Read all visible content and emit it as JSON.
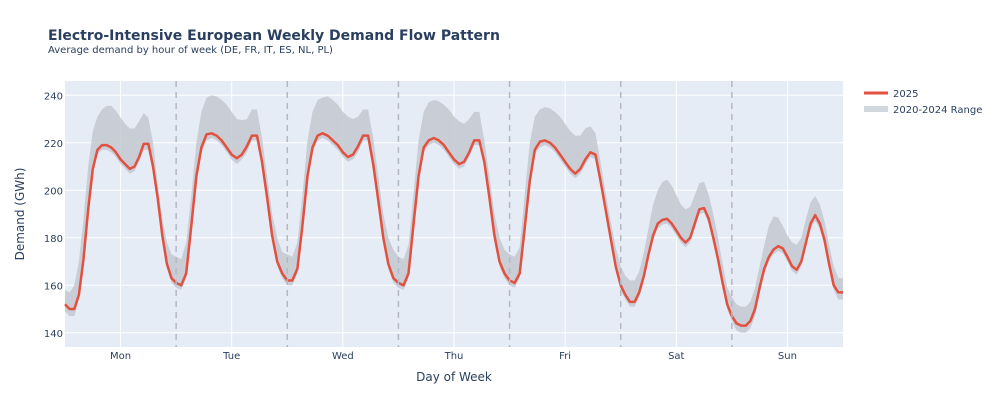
{
  "chart_data": {
    "type": "line",
    "title": "Electro-Intensive European Weekly Demand Flow Pattern",
    "subtitle": "Average demand by hour of week (DE, FR, IT, ES, NL, PL)",
    "xlabel": "Day of Week",
    "ylabel": "Demand (GWh)",
    "ylim": [
      134,
      246
    ],
    "yticks": [
      140,
      160,
      180,
      200,
      220,
      240
    ],
    "grid": true,
    "day_labels": [
      "Mon",
      "Tue",
      "Wed",
      "Thu",
      "Fri",
      "Sat",
      "Sun"
    ],
    "legend_position": "top-right",
    "colors": {
      "line_2025": "#e2513f",
      "range_fill": "#c3c8d0",
      "legend_range": "#d3d7de",
      "plot_bg": "#e5ecf6",
      "divider": "#b4b8c2",
      "text": "#2a3f5f"
    },
    "series": [
      {
        "name": "2025",
        "days": [
          [
            152,
            150,
            150,
            156,
            171,
            192,
            209,
            217,
            219,
            219,
            218,
            216,
            213,
            211,
            209,
            210,
            214,
            219.5,
            219.5,
            210,
            197,
            181,
            169,
            163
          ],
          [
            161,
            160,
            165,
            185,
            206,
            218,
            223.5,
            224,
            223,
            221,
            218,
            215,
            213.5,
            215,
            218.5,
            223,
            223,
            212,
            197,
            181,
            170,
            165
          ],
          [
            162,
            162,
            167,
            185,
            206,
            218,
            223,
            224,
            223,
            221,
            219,
            216,
            214,
            215,
            218.5,
            223,
            223,
            211,
            196,
            180,
            169,
            163
          ],
          [
            161,
            160,
            165,
            186,
            206,
            218,
            221,
            222,
            221,
            219,
            216,
            213,
            211,
            212,
            216,
            221,
            221,
            212,
            197,
            181,
            170,
            165
          ],
          [
            162,
            161,
            165,
            184,
            204,
            217,
            220.5,
            221,
            220,
            218,
            215,
            212,
            209,
            207,
            209,
            213,
            216,
            215,
            204,
            192,
            180,
            168
          ],
          [
            160,
            156,
            153,
            153,
            157,
            164,
            173,
            181,
            186,
            187.5,
            188,
            186,
            183,
            180,
            178,
            180,
            186,
            192,
            192.5,
            188,
            180,
            171,
            161,
            152
          ],
          [
            147,
            144,
            143,
            143,
            145,
            150,
            159,
            167,
            172,
            175,
            176.5,
            175.5,
            172,
            168,
            166.5,
            170,
            178,
            186,
            189.5,
            186,
            179,
            169,
            160,
            157
          ]
        ]
      },
      {
        "name": "2020-2024 Range",
        "upper": [
          [
            158,
            157,
            160,
            170,
            188,
            210,
            225,
            231,
            234,
            235.5,
            235.5,
            233.5,
            230.5,
            228,
            226,
            226,
            229,
            232.5,
            230.5,
            220,
            203,
            188,
            178,
            173
          ],
          [
            172,
            171,
            178,
            198,
            220,
            233,
            239,
            240,
            239.5,
            238,
            236,
            233,
            230,
            229.5,
            230,
            234,
            234,
            222,
            206,
            190,
            180,
            174
          ],
          [
            173,
            172,
            178,
            198,
            221,
            233,
            238,
            239,
            239.5,
            238,
            236,
            233,
            231,
            230,
            231,
            234,
            234,
            222,
            206,
            190,
            180,
            175
          ],
          [
            172,
            171,
            177,
            199,
            221,
            233,
            237,
            238,
            237.5,
            236,
            234,
            231,
            229,
            228,
            230,
            233,
            233,
            221,
            206,
            190,
            180,
            175
          ],
          [
            173,
            172,
            176,
            198,
            220,
            231,
            234,
            235,
            234.5,
            233,
            231,
            228,
            225,
            223,
            223,
            226,
            227,
            224,
            212,
            199,
            187,
            176
          ],
          [
            168,
            164,
            162,
            162,
            166,
            174,
            184,
            194,
            200,
            203.5,
            204.5,
            202,
            198,
            194,
            192,
            193,
            198,
            203,
            203.5,
            198,
            190,
            180,
            169,
            159
          ],
          [
            155,
            152,
            151,
            151,
            153,
            159,
            168,
            177,
            185,
            189,
            188.5,
            185,
            181,
            178,
            177,
            180,
            188,
            195,
            197.5,
            194,
            187,
            177,
            168,
            163
          ]
        ],
        "lower": [
          [
            149,
            147,
            147,
            154,
            169,
            190,
            207,
            215,
            217,
            217,
            216,
            214,
            211,
            209,
            207,
            208,
            212,
            217,
            217,
            208,
            195,
            179,
            167,
            161
          ],
          [
            159,
            158,
            163,
            183,
            204,
            216,
            221,
            222,
            221,
            219,
            216,
            213,
            211,
            213,
            216,
            221,
            221,
            210,
            195,
            179,
            168,
            163
          ],
          [
            160,
            160,
            165,
            183,
            204,
            216,
            221,
            222,
            221,
            219,
            217,
            214,
            212,
            213,
            216,
            221,
            221,
            209,
            194,
            178,
            167,
            161
          ],
          [
            159,
            158,
            163,
            184,
            204,
            216,
            219,
            220,
            219,
            217,
            214,
            211,
            209,
            210,
            214,
            219,
            219,
            210,
            195,
            179,
            168,
            163
          ],
          [
            160,
            159,
            163,
            182,
            202,
            215,
            218,
            219,
            218,
            216,
            213,
            210,
            207,
            205,
            207,
            211,
            214,
            213,
            202,
            190,
            178,
            166
          ],
          [
            158,
            154,
            151,
            151,
            155,
            162,
            171,
            179,
            184,
            185.5,
            186,
            184,
            181,
            178,
            176,
            178,
            184,
            190,
            190.5,
            186,
            178,
            169,
            159,
            150
          ],
          [
            145,
            141,
            140,
            140,
            142,
            147,
            156,
            165,
            170,
            173,
            174.5,
            173.5,
            170,
            166,
            164.5,
            168,
            176,
            184,
            187,
            184,
            177,
            167,
            158,
            154
          ]
        ]
      }
    ]
  }
}
